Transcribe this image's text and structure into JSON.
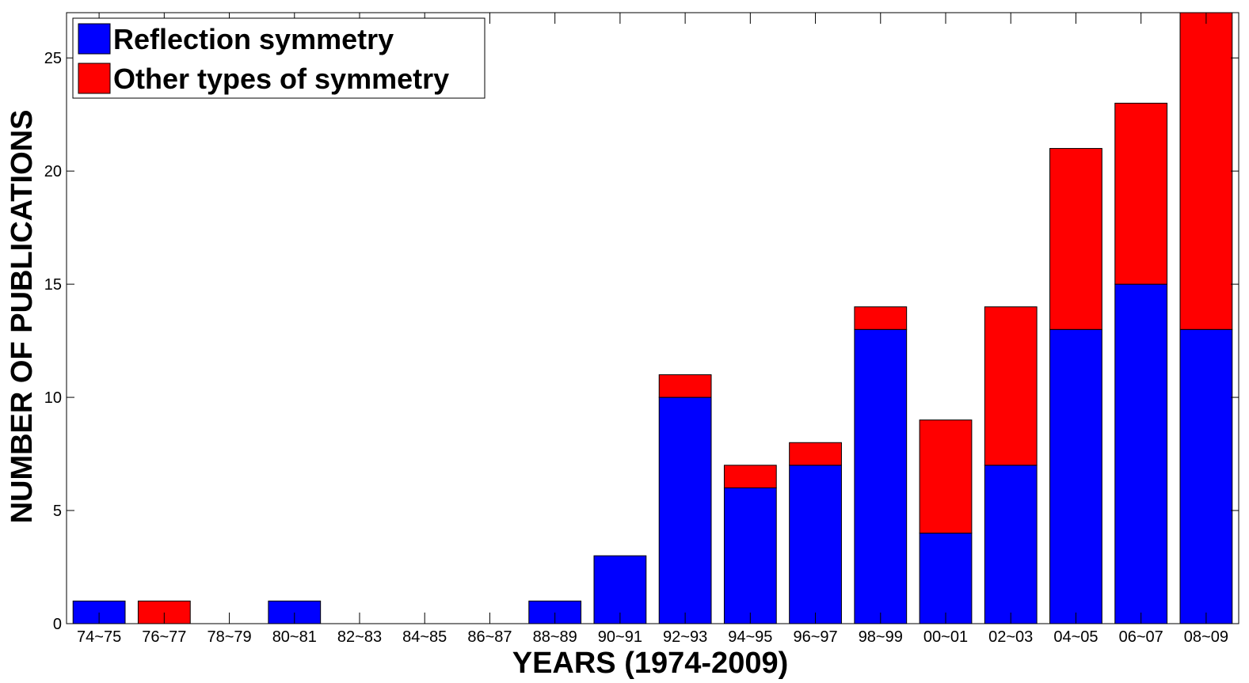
{
  "chart_data": {
    "type": "bar",
    "stacked": true,
    "xlabel": "YEARS (1974-2009)",
    "ylabel": "NUMBER OF PUBLICATIONS",
    "ylim": [
      0,
      27
    ],
    "yticks": [
      0,
      5,
      10,
      15,
      20,
      25
    ],
    "grid": false,
    "legend_position": "top-left",
    "categories": [
      "74~75",
      "76~77",
      "78~79",
      "80~81",
      "82~83",
      "84~85",
      "86~87",
      "88~89",
      "90~91",
      "92~93",
      "94~95",
      "96~97",
      "98~99",
      "00~01",
      "02~03",
      "04~05",
      "06~07",
      "08~09"
    ],
    "series": [
      {
        "name": "Reflection symmetry",
        "color": "#0000ff",
        "values": [
          1,
          0,
          0,
          1,
          0,
          0,
          0,
          1,
          3,
          10,
          6,
          7,
          13,
          4,
          7,
          13,
          15,
          13
        ]
      },
      {
        "name": "Other types of symmetry",
        "color": "#ff0000",
        "values": [
          0,
          1,
          0,
          0,
          0,
          0,
          0,
          0,
          0,
          1,
          1,
          1,
          1,
          5,
          7,
          8,
          8,
          14
        ]
      }
    ]
  }
}
